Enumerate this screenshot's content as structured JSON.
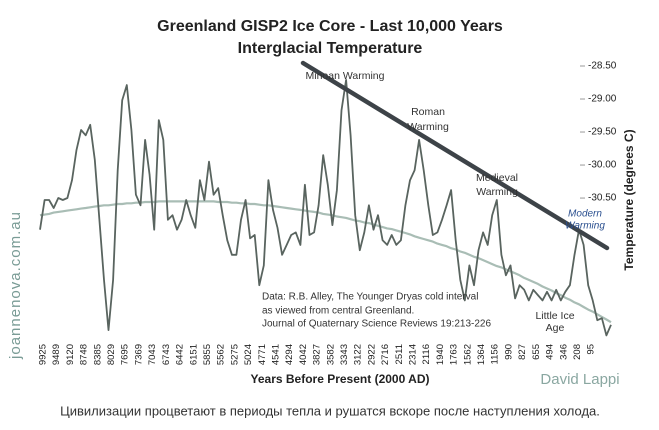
{
  "chart_data": {
    "type": "line",
    "title": [
      "Greenland GISP2 Ice Core - Last 10,000 Years",
      "Interglacial Temperature"
    ],
    "x_label": "Years Before Present (2000 AD)",
    "y_label": "Temperature (degrees C)",
    "categories": [
      "9925",
      null,
      null,
      "9489",
      null,
      null,
      "9120",
      null,
      null,
      "8748",
      null,
      null,
      "8385",
      null,
      null,
      "8029",
      null,
      null,
      "7695",
      null,
      null,
      "7369",
      null,
      null,
      "7043",
      null,
      null,
      "6743",
      null,
      null,
      "6442",
      null,
      null,
      "6151",
      null,
      null,
      "5855",
      null,
      null,
      "5562",
      null,
      null,
      "5275",
      null,
      null,
      "5024",
      null,
      null,
      "4771",
      null,
      null,
      "4541",
      null,
      null,
      "4294",
      null,
      null,
      "4042",
      null,
      null,
      "3827",
      null,
      null,
      "3582",
      null,
      null,
      "3343",
      null,
      null,
      "3122",
      null,
      null,
      "2922",
      null,
      null,
      "2716",
      null,
      null,
      "2511",
      null,
      null,
      "2314",
      null,
      null,
      "2116",
      null,
      null,
      "1940",
      null,
      null,
      "1763",
      null,
      null,
      "1562",
      null,
      null,
      "1364",
      null,
      null,
      "1156",
      null,
      null,
      "990",
      null,
      null,
      "827",
      null,
      null,
      "655",
      null,
      null,
      "494",
      null,
      null,
      "346",
      null,
      null,
      "208",
      null,
      null,
      "95",
      null,
      null,
      null,
      null,
      null
    ],
    "series": [
      {
        "color": "#59645f",
        "values": [
          -30.98,
          -30.53,
          -30.53,
          -30.65,
          -30.5,
          -30.53,
          -30.5,
          -30.23,
          -29.77,
          -29.47,
          -29.55,
          -29.39,
          -29.92,
          -30.83,
          -31.74,
          -32.5,
          -31.74,
          -30.08,
          -29.02,
          -28.79,
          -29.47,
          -30.45,
          -30.61,
          -29.62,
          -30.15,
          -30.98,
          -29.32,
          -29.62,
          -30.83,
          -30.76,
          -30.98,
          -30.83,
          -30.53,
          -30.76,
          -30.95,
          -30.23,
          -30.53,
          -29.95,
          -30.45,
          -30.35,
          -30.76,
          -31.14,
          -31.36,
          -31.36,
          -30.83,
          -30.53,
          -31.11,
          -31.06,
          -31.82,
          -31.52,
          -30.23,
          -30.68,
          -30.95,
          -31.36,
          -31.21,
          -31.06,
          -31.02,
          -31.21,
          -30.3,
          -31.06,
          -31.02,
          -30.61,
          -29.85,
          -30.3,
          -30.91,
          -30.38,
          -29.17,
          -28.71,
          -29.55,
          -30.76,
          -31.29,
          -31.02,
          -30.61,
          -30.98,
          -30.76,
          -31.14,
          -31.21,
          -31.06,
          -31.21,
          -31.14,
          -30.61,
          -30.23,
          -30.08,
          -29.62,
          -30.08,
          -30.61,
          -31.06,
          -31.02,
          -30.83,
          -30.61,
          -30.38,
          -31.14,
          -31.74,
          -32.05,
          -31.52,
          -31.82,
          -31.29,
          -31.02,
          -31.21,
          -30.76,
          -30.53,
          -31.36,
          -31.67,
          -31.52,
          -32.02,
          -31.82,
          -31.89,
          -32.05,
          -31.89,
          -31.97,
          -32.05,
          -31.92,
          -32.05,
          -31.89,
          -32.05,
          -31.92,
          -31.82,
          -31.36,
          -30.98,
          -31.21,
          -31.82,
          -32.05,
          -32.35,
          -32.32,
          -32.58,
          -32.42
        ]
      },
      {
        "color": "#a9bdb5",
        "values": [
          -30.76,
          -30.75,
          -30.74,
          -30.72,
          -30.71,
          -30.7,
          -30.69,
          -30.68,
          -30.67,
          -30.66,
          -30.65,
          -30.64,
          -30.63,
          -30.62,
          -30.61,
          -30.61,
          -30.6,
          -30.59,
          -30.59,
          -30.58,
          -30.58,
          -30.57,
          -30.57,
          -30.56,
          -30.56,
          -30.56,
          -30.55,
          -30.55,
          -30.55,
          -30.55,
          -30.55,
          -30.55,
          -30.55,
          -30.55,
          -30.55,
          -30.55,
          -30.55,
          -30.55,
          -30.55,
          -30.56,
          -30.56,
          -30.56,
          -30.57,
          -30.57,
          -30.58,
          -30.58,
          -30.59,
          -30.59,
          -30.6,
          -30.61,
          -30.61,
          -30.62,
          -30.63,
          -30.64,
          -30.65,
          -30.66,
          -30.67,
          -30.68,
          -30.69,
          -30.7,
          -30.71,
          -30.72,
          -30.74,
          -30.75,
          -30.76,
          -30.78,
          -30.79,
          -30.8,
          -30.82,
          -30.84,
          -30.85,
          -30.87,
          -30.88,
          -30.9,
          -30.92,
          -30.94,
          -30.96,
          -30.97,
          -30.99,
          -31.01,
          -31.03,
          -31.05,
          -31.08,
          -31.1,
          -31.12,
          -31.14,
          -31.16,
          -31.19,
          -31.21,
          -31.23,
          -31.26,
          -31.28,
          -31.31,
          -31.33,
          -31.36,
          -31.39,
          -31.41,
          -31.44,
          -31.47,
          -31.5,
          -31.53,
          -31.55,
          -31.58,
          -31.61,
          -31.64,
          -31.67,
          -31.71,
          -31.74,
          -31.77,
          -31.8,
          -31.84,
          -31.87,
          -31.9,
          -31.94,
          -31.97,
          -32.01,
          -32.04,
          -32.08,
          -32.11,
          -32.15,
          -32.19,
          -32.22,
          -32.26,
          -32.3,
          -32.34,
          -32.38
        ]
      }
    ],
    "ylim": [
      -32.65,
      -28.4
    ],
    "yticks": [
      {
        "value": -28.5,
        "label": "-28.50"
      },
      {
        "value": -29,
        "label": "-29.00"
      },
      {
        "value": -29.5,
        "label": "-29.50"
      },
      {
        "value": -30,
        "label": "-30.00"
      },
      {
        "value": -30.5,
        "label": "-30.50"
      }
    ],
    "annotations": [
      [
        "Minoan Warming"
      ],
      [
        "Roman",
        "Warming"
      ],
      [
        "Medieval",
        "Warming"
      ],
      [
        "Modern",
        "Warming"
      ],
      [
        "Little Ice",
        "Age"
      ],
      [
        "Data: R.B. Alley,  The Younger Dryas cold interval",
        "as viewed from central Greenland.",
        "Journal of Quaternary  Science Reviews 19:213-226"
      ]
    ]
  },
  "watermark": "joannenova.com.au",
  "credit": "David Lappi",
  "caption": "Цивилизации процветают в периоды тепла и рушатся вскоре после наступления холода."
}
